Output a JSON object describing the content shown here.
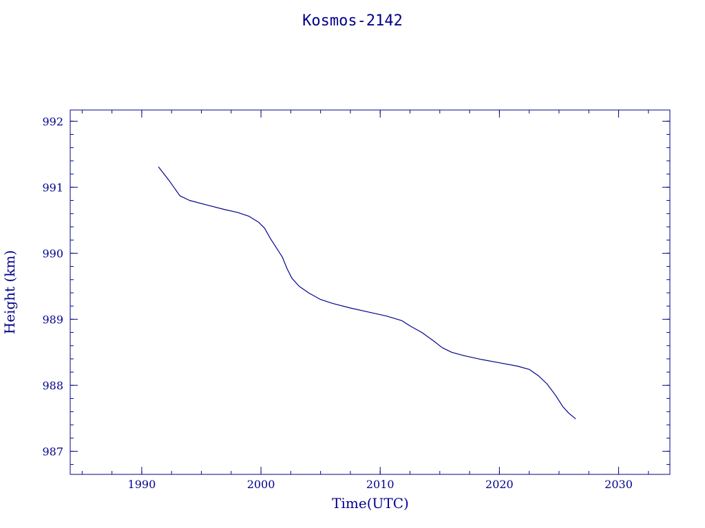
{
  "chart_data": {
    "type": "line",
    "title": "Kosmos-2142",
    "xlabel": "Time(UTC)",
    "ylabel": "Height (km)",
    "xlim": [
      1984,
      2034.3
    ],
    "ylim": [
      986.65,
      992.17
    ],
    "xticks": [
      1990,
      2000,
      2010,
      2020,
      2030
    ],
    "yticks": [
      987,
      988,
      989,
      990,
      991,
      992
    ],
    "x_minor_step": 2.5,
    "y_minor_step": 0.2,
    "grid": false,
    "line_color": "#00008b",
    "series": [
      {
        "x": [
          1991.4,
          1992.3,
          1993.2,
          1994.0,
          1995.5,
          1997.0,
          1998.0,
          1999.0,
          1999.8,
          2000.3,
          2000.8,
          2001.3,
          2001.8,
          2002.2,
          2002.6,
          2003.2,
          2004.0,
          2005.0,
          2006.0,
          2007.5,
          2009.0,
          2010.5,
          2011.8,
          2012.5,
          2013.5,
          2014.5,
          2015.2,
          2016.0,
          2017.0,
          2018.5,
          2020.0,
          2021.5,
          2022.5,
          2023.3,
          2024.0,
          2024.7,
          2025.3,
          2025.8,
          2026.4
        ],
        "y": [
          991.31,
          991.1,
          990.87,
          990.8,
          990.73,
          990.66,
          990.62,
          990.56,
          990.47,
          990.38,
          990.22,
          990.08,
          989.94,
          989.76,
          989.62,
          989.5,
          989.4,
          989.3,
          989.24,
          989.17,
          989.11,
          989.05,
          988.98,
          988.9,
          988.8,
          988.67,
          988.57,
          988.5,
          988.45,
          988.39,
          988.34,
          988.29,
          988.24,
          988.14,
          988.02,
          987.85,
          987.68,
          987.58,
          987.49
        ]
      }
    ]
  }
}
